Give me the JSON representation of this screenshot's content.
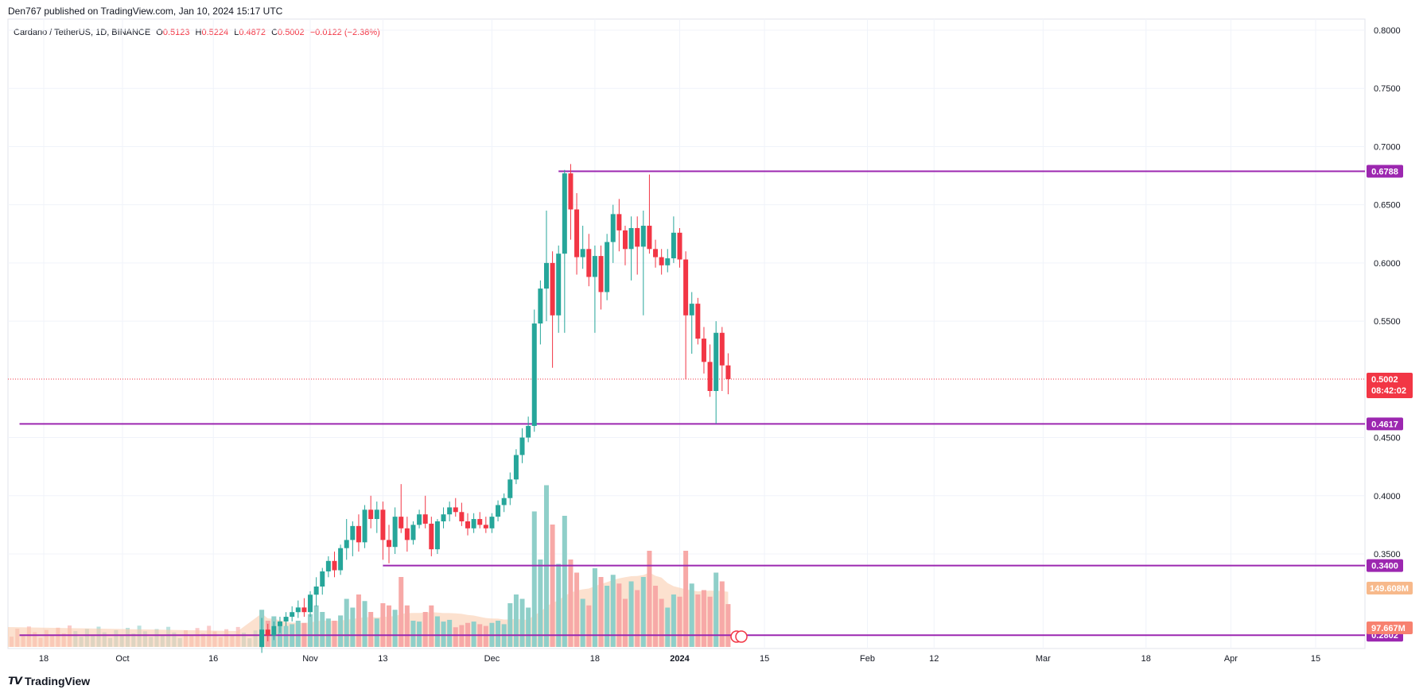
{
  "header": {
    "publish_text": "Den767 published on TradingView.com, Jan 10, 2024 15:17 UTC",
    "symbol": "Cardano / TetherUS, 1D, BINANCE",
    "o_label": "O",
    "o_value": "0.5123",
    "h_label": "H",
    "h_value": "0.5224",
    "l_label": "L",
    "l_value": "0.4872",
    "c_label": "C",
    "c_value": "0.5002",
    "change": "−0.0122 (−2.38%)"
  },
  "footer": {
    "logo_text": "TradingView",
    "logo_icon": "tradingview-logo-icon"
  },
  "colors": {
    "up": "#26a69a",
    "down": "#f23645",
    "level_line": "#9c27b0",
    "up_volume": "#8fcfc9",
    "down_volume": "#f7a9a7",
    "ma_fill": "#f9c8a8",
    "grid": "#f0f3fa",
    "price_badge": "#f23645",
    "vol_badge": "#f7931a"
  },
  "chart_data": {
    "type": "candlestick",
    "symbol": "Cardano / TetherUS",
    "interval": "1D",
    "exchange": "BINANCE",
    "y_axis": {
      "ticks": [
        "0.8000",
        "0.7500",
        "0.7000",
        "0.6500",
        "0.6000",
        "0.5500",
        "0.4500",
        "0.4000",
        "0.3500"
      ],
      "ylim": [
        0.258,
        0.812
      ]
    },
    "x_axis": {
      "ticks": [
        "18",
        "Oct",
        "16",
        "Nov",
        "13",
        "Dec",
        "18",
        "2024",
        "15",
        "Feb",
        "12",
        "Mar",
        "18",
        "Apr",
        "15"
      ],
      "tick_dates": [
        "2023-09-18",
        "2023-10-01",
        "2023-10-16",
        "2023-11-01",
        "2023-11-13",
        "2023-12-01",
        "2023-12-18",
        "2024-01-01",
        "2024-01-15",
        "2024-02-01",
        "2024-02-12",
        "2024-03-01",
        "2024-03-18",
        "2024-04-01",
        "2024-04-15"
      ]
    },
    "horizontal_levels": [
      {
        "value": 0.6788,
        "label": "0.6788",
        "start": "2023-12-12"
      },
      {
        "value": 0.4617,
        "label": "0.4617",
        "start": "2023-09-14"
      },
      {
        "value": 0.34,
        "label": "0.3400",
        "start": "2023-11-13"
      },
      {
        "value": 0.2802,
        "label": "0.2802",
        "start": "2023-09-14"
      }
    ],
    "current_price": {
      "value": 0.5002,
      "label": "0.5002",
      "countdown": "08:42:02"
    },
    "volume_labels": [
      "149.608M",
      "97.667M"
    ],
    "candles": [
      {
        "date": "2023-10-24",
        "o": 0.27,
        "h": 0.295,
        "l": 0.265,
        "c": 0.285
      },
      {
        "date": "2023-10-25",
        "o": 0.285,
        "h": 0.29,
        "l": 0.275,
        "c": 0.28
      },
      {
        "date": "2023-10-26",
        "o": 0.28,
        "h": 0.292,
        "l": 0.276,
        "c": 0.288
      },
      {
        "date": "2023-10-27",
        "o": 0.288,
        "h": 0.296,
        "l": 0.282,
        "c": 0.292
      },
      {
        "date": "2023-10-28",
        "o": 0.292,
        "h": 0.3,
        "l": 0.288,
        "c": 0.296
      },
      {
        "date": "2023-10-29",
        "o": 0.296,
        "h": 0.305,
        "l": 0.292,
        "c": 0.3
      },
      {
        "date": "2023-10-30",
        "o": 0.3,
        "h": 0.31,
        "l": 0.295,
        "c": 0.304
      },
      {
        "date": "2023-10-31",
        "o": 0.304,
        "h": 0.312,
        "l": 0.296,
        "c": 0.3
      },
      {
        "date": "2023-11-01",
        "o": 0.3,
        "h": 0.318,
        "l": 0.296,
        "c": 0.315
      },
      {
        "date": "2023-11-02",
        "o": 0.315,
        "h": 0.33,
        "l": 0.305,
        "c": 0.322
      },
      {
        "date": "2023-11-03",
        "o": 0.322,
        "h": 0.338,
        "l": 0.315,
        "c": 0.335
      },
      {
        "date": "2023-11-04",
        "o": 0.335,
        "h": 0.348,
        "l": 0.33,
        "c": 0.344
      },
      {
        "date": "2023-11-05",
        "o": 0.344,
        "h": 0.352,
        "l": 0.33,
        "c": 0.336
      },
      {
        "date": "2023-11-06",
        "o": 0.336,
        "h": 0.358,
        "l": 0.332,
        "c": 0.355
      },
      {
        "date": "2023-11-07",
        "o": 0.355,
        "h": 0.38,
        "l": 0.345,
        "c": 0.362
      },
      {
        "date": "2023-11-08",
        "o": 0.362,
        "h": 0.378,
        "l": 0.348,
        "c": 0.374
      },
      {
        "date": "2023-11-09",
        "o": 0.374,
        "h": 0.384,
        "l": 0.352,
        "c": 0.36
      },
      {
        "date": "2023-11-10",
        "o": 0.36,
        "h": 0.392,
        "l": 0.355,
        "c": 0.388
      },
      {
        "date": "2023-11-11",
        "o": 0.388,
        "h": 0.4,
        "l": 0.372,
        "c": 0.38
      },
      {
        "date": "2023-11-12",
        "o": 0.38,
        "h": 0.395,
        "l": 0.368,
        "c": 0.388
      },
      {
        "date": "2023-11-13",
        "o": 0.388,
        "h": 0.395,
        "l": 0.345,
        "c": 0.362
      },
      {
        "date": "2023-11-14",
        "o": 0.362,
        "h": 0.375,
        "l": 0.342,
        "c": 0.356
      },
      {
        "date": "2023-11-15",
        "o": 0.356,
        "h": 0.39,
        "l": 0.35,
        "c": 0.382
      },
      {
        "date": "2023-11-16",
        "o": 0.382,
        "h": 0.41,
        "l": 0.368,
        "c": 0.372
      },
      {
        "date": "2023-11-17",
        "o": 0.372,
        "h": 0.382,
        "l": 0.352,
        "c": 0.362
      },
      {
        "date": "2023-11-18",
        "o": 0.362,
        "h": 0.378,
        "l": 0.358,
        "c": 0.375
      },
      {
        "date": "2023-11-19",
        "o": 0.375,
        "h": 0.388,
        "l": 0.372,
        "c": 0.384
      },
      {
        "date": "2023-11-20",
        "o": 0.384,
        "h": 0.4,
        "l": 0.372,
        "c": 0.376
      },
      {
        "date": "2023-11-21",
        "o": 0.376,
        "h": 0.382,
        "l": 0.348,
        "c": 0.354
      },
      {
        "date": "2023-11-22",
        "o": 0.354,
        "h": 0.38,
        "l": 0.35,
        "c": 0.378
      },
      {
        "date": "2023-11-23",
        "o": 0.378,
        "h": 0.39,
        "l": 0.372,
        "c": 0.384
      },
      {
        "date": "2023-11-24",
        "o": 0.384,
        "h": 0.395,
        "l": 0.378,
        "c": 0.39
      },
      {
        "date": "2023-11-25",
        "o": 0.39,
        "h": 0.398,
        "l": 0.382,
        "c": 0.386
      },
      {
        "date": "2023-11-26",
        "o": 0.386,
        "h": 0.394,
        "l": 0.374,
        "c": 0.378
      },
      {
        "date": "2023-11-27",
        "o": 0.378,
        "h": 0.385,
        "l": 0.366,
        "c": 0.372
      },
      {
        "date": "2023-11-28",
        "o": 0.372,
        "h": 0.385,
        "l": 0.368,
        "c": 0.38
      },
      {
        "date": "2023-11-29",
        "o": 0.38,
        "h": 0.386,
        "l": 0.372,
        "c": 0.375
      },
      {
        "date": "2023-11-30",
        "o": 0.375,
        "h": 0.382,
        "l": 0.368,
        "c": 0.372
      },
      {
        "date": "2023-12-01",
        "o": 0.372,
        "h": 0.385,
        "l": 0.368,
        "c": 0.382
      },
      {
        "date": "2023-12-02",
        "o": 0.382,
        "h": 0.396,
        "l": 0.378,
        "c": 0.392
      },
      {
        "date": "2023-12-03",
        "o": 0.392,
        "h": 0.402,
        "l": 0.386,
        "c": 0.398
      },
      {
        "date": "2023-12-04",
        "o": 0.398,
        "h": 0.42,
        "l": 0.392,
        "c": 0.414
      },
      {
        "date": "2023-12-05",
        "o": 0.414,
        "h": 0.44,
        "l": 0.41,
        "c": 0.435
      },
      {
        "date": "2023-12-06",
        "o": 0.435,
        "h": 0.458,
        "l": 0.428,
        "c": 0.45
      },
      {
        "date": "2023-12-07",
        "o": 0.45,
        "h": 0.468,
        "l": 0.446,
        "c": 0.46
      },
      {
        "date": "2023-12-08",
        "o": 0.46,
        "h": 0.56,
        "l": 0.455,
        "c": 0.548
      },
      {
        "date": "2023-12-09",
        "o": 0.548,
        "h": 0.585,
        "l": 0.53,
        "c": 0.578
      },
      {
        "date": "2023-12-10",
        "o": 0.578,
        "h": 0.645,
        "l": 0.55,
        "c": 0.6
      },
      {
        "date": "2023-12-11",
        "o": 0.6,
        "h": 0.61,
        "l": 0.51,
        "c": 0.555
      },
      {
        "date": "2023-12-12",
        "o": 0.555,
        "h": 0.615,
        "l": 0.54,
        "c": 0.608
      },
      {
        "date": "2023-12-13",
        "o": 0.608,
        "h": 0.68,
        "l": 0.54,
        "c": 0.677
      },
      {
        "date": "2023-12-14",
        "o": 0.677,
        "h": 0.685,
        "l": 0.62,
        "c": 0.646
      },
      {
        "date": "2023-12-15",
        "o": 0.646,
        "h": 0.66,
        "l": 0.59,
        "c": 0.605
      },
      {
        "date": "2023-12-16",
        "o": 0.605,
        "h": 0.632,
        "l": 0.595,
        "c": 0.612
      },
      {
        "date": "2023-12-17",
        "o": 0.612,
        "h": 0.625,
        "l": 0.58,
        "c": 0.588
      },
      {
        "date": "2023-12-18",
        "o": 0.588,
        "h": 0.615,
        "l": 0.54,
        "c": 0.606
      },
      {
        "date": "2023-12-19",
        "o": 0.606,
        "h": 0.615,
        "l": 0.56,
        "c": 0.575
      },
      {
        "date": "2023-12-20",
        "o": 0.575,
        "h": 0.625,
        "l": 0.568,
        "c": 0.618
      },
      {
        "date": "2023-12-21",
        "o": 0.618,
        "h": 0.65,
        "l": 0.6,
        "c": 0.642
      },
      {
        "date": "2023-12-22",
        "o": 0.642,
        "h": 0.655,
        "l": 0.61,
        "c": 0.628
      },
      {
        "date": "2023-12-23",
        "o": 0.628,
        "h": 0.632,
        "l": 0.598,
        "c": 0.612
      },
      {
        "date": "2023-12-24",
        "o": 0.612,
        "h": 0.64,
        "l": 0.585,
        "c": 0.63
      },
      {
        "date": "2023-12-25",
        "o": 0.63,
        "h": 0.64,
        "l": 0.59,
        "c": 0.614
      },
      {
        "date": "2023-12-26",
        "o": 0.614,
        "h": 0.645,
        "l": 0.555,
        "c": 0.632
      },
      {
        "date": "2023-12-27",
        "o": 0.632,
        "h": 0.676,
        "l": 0.608,
        "c": 0.612
      },
      {
        "date": "2023-12-28",
        "o": 0.612,
        "h": 0.62,
        "l": 0.596,
        "c": 0.605
      },
      {
        "date": "2023-12-29",
        "o": 0.605,
        "h": 0.612,
        "l": 0.59,
        "c": 0.598
      },
      {
        "date": "2023-12-30",
        "o": 0.598,
        "h": 0.612,
        "l": 0.592,
        "c": 0.604
      },
      {
        "date": "2023-12-31",
        "o": 0.604,
        "h": 0.64,
        "l": 0.6,
        "c": 0.626
      },
      {
        "date": "2024-01-01",
        "o": 0.626,
        "h": 0.63,
        "l": 0.596,
        "c": 0.603
      },
      {
        "date": "2024-01-02",
        "o": 0.603,
        "h": 0.61,
        "l": 0.5,
        "c": 0.555
      },
      {
        "date": "2024-01-03",
        "o": 0.555,
        "h": 0.575,
        "l": 0.522,
        "c": 0.565
      },
      {
        "date": "2024-01-04",
        "o": 0.565,
        "h": 0.57,
        "l": 0.53,
        "c": 0.535
      },
      {
        "date": "2024-01-05",
        "o": 0.535,
        "h": 0.545,
        "l": 0.505,
        "c": 0.515
      },
      {
        "date": "2024-01-06",
        "o": 0.515,
        "h": 0.53,
        "l": 0.485,
        "c": 0.49
      },
      {
        "date": "2024-01-07",
        "o": 0.49,
        "h": 0.55,
        "l": 0.462,
        "c": 0.54
      },
      {
        "date": "2024-01-08",
        "o": 0.54,
        "h": 0.545,
        "l": 0.49,
        "c": 0.512
      },
      {
        "date": "2024-01-09",
        "o": 0.512,
        "h": 0.5224,
        "l": 0.4872,
        "c": 0.5002
      }
    ],
    "volume": [
      {
        "date": "2023-10-24",
        "v": 85,
        "up": true
      },
      {
        "date": "2023-10-25",
        "v": 60,
        "up": false
      },
      {
        "date": "2023-10-26",
        "v": 70,
        "up": true
      },
      {
        "date": "2023-10-27",
        "v": 55,
        "up": true
      },
      {
        "date": "2023-10-28",
        "v": 48,
        "up": true
      },
      {
        "date": "2023-10-29",
        "v": 52,
        "up": true
      },
      {
        "date": "2023-10-30",
        "v": 60,
        "up": true
      },
      {
        "date": "2023-10-31",
        "v": 55,
        "up": false
      },
      {
        "date": "2023-11-01",
        "v": 75,
        "up": true
      },
      {
        "date": "2023-11-02",
        "v": 95,
        "up": true
      },
      {
        "date": "2023-11-03",
        "v": 80,
        "up": true
      },
      {
        "date": "2023-11-04",
        "v": 65,
        "up": true
      },
      {
        "date": "2023-11-05",
        "v": 60,
        "up": false
      },
      {
        "date": "2023-11-06",
        "v": 72,
        "up": true
      },
      {
        "date": "2023-11-07",
        "v": 110,
        "up": true
      },
      {
        "date": "2023-11-08",
        "v": 90,
        "up": true
      },
      {
        "date": "2023-11-09",
        "v": 120,
        "up": false
      },
      {
        "date": "2023-11-10",
        "v": 105,
        "up": true
      },
      {
        "date": "2023-11-11",
        "v": 80,
        "up": false
      },
      {
        "date": "2023-11-12",
        "v": 65,
        "up": true
      },
      {
        "date": "2023-11-13",
        "v": 100,
        "up": false
      },
      {
        "date": "2023-11-14",
        "v": 95,
        "up": false
      },
      {
        "date": "2023-11-15",
        "v": 85,
        "up": true
      },
      {
        "date": "2023-11-16",
        "v": 160,
        "up": false
      },
      {
        "date": "2023-11-17",
        "v": 95,
        "up": false
      },
      {
        "date": "2023-11-18",
        "v": 60,
        "up": true
      },
      {
        "date": "2023-11-19",
        "v": 58,
        "up": true
      },
      {
        "date": "2023-11-20",
        "v": 80,
        "up": false
      },
      {
        "date": "2023-11-21",
        "v": 95,
        "up": false
      },
      {
        "date": "2023-11-22",
        "v": 70,
        "up": true
      },
      {
        "date": "2023-11-23",
        "v": 58,
        "up": true
      },
      {
        "date": "2023-11-24",
        "v": 62,
        "up": true
      },
      {
        "date": "2023-11-25",
        "v": 45,
        "up": false
      },
      {
        "date": "2023-11-26",
        "v": 50,
        "up": false
      },
      {
        "date": "2023-11-27",
        "v": 55,
        "up": false
      },
      {
        "date": "2023-11-28",
        "v": 58,
        "up": true
      },
      {
        "date": "2023-11-29",
        "v": 52,
        "up": false
      },
      {
        "date": "2023-11-30",
        "v": 48,
        "up": false
      },
      {
        "date": "2023-12-01",
        "v": 55,
        "up": true
      },
      {
        "date": "2023-12-02",
        "v": 60,
        "up": true
      },
      {
        "date": "2023-12-03",
        "v": 52,
        "up": true
      },
      {
        "date": "2023-12-04",
        "v": 100,
        "up": true
      },
      {
        "date": "2023-12-05",
        "v": 120,
        "up": true
      },
      {
        "date": "2023-12-06",
        "v": 110,
        "up": true
      },
      {
        "date": "2023-12-07",
        "v": 90,
        "up": true
      },
      {
        "date": "2023-12-08",
        "v": 310,
        "up": true
      },
      {
        "date": "2023-12-09",
        "v": 200,
        "up": true
      },
      {
        "date": "2023-12-10",
        "v": 370,
        "up": true
      },
      {
        "date": "2023-12-11",
        "v": 280,
        "up": false
      },
      {
        "date": "2023-12-12",
        "v": 190,
        "up": true
      },
      {
        "date": "2023-12-13",
        "v": 300,
        "up": true
      },
      {
        "date": "2023-12-14",
        "v": 200,
        "up": false
      },
      {
        "date": "2023-12-15",
        "v": 170,
        "up": false
      },
      {
        "date": "2023-12-16",
        "v": 110,
        "up": true
      },
      {
        "date": "2023-12-17",
        "v": 95,
        "up": false
      },
      {
        "date": "2023-12-18",
        "v": 180,
        "up": true
      },
      {
        "date": "2023-12-19",
        "v": 160,
        "up": false
      },
      {
        "date": "2023-12-20",
        "v": 140,
        "up": true
      },
      {
        "date": "2023-12-21",
        "v": 165,
        "up": true
      },
      {
        "date": "2023-12-22",
        "v": 145,
        "up": false
      },
      {
        "date": "2023-12-23",
        "v": 110,
        "up": false
      },
      {
        "date": "2023-12-24",
        "v": 150,
        "up": true
      },
      {
        "date": "2023-12-25",
        "v": 130,
        "up": false
      },
      {
        "date": "2023-12-26",
        "v": 160,
        "up": true
      },
      {
        "date": "2023-12-27",
        "v": 220,
        "up": false
      },
      {
        "date": "2023-12-28",
        "v": 140,
        "up": false
      },
      {
        "date": "2023-12-29",
        "v": 110,
        "up": false
      },
      {
        "date": "2023-12-30",
        "v": 90,
        "up": true
      },
      {
        "date": "2023-12-31",
        "v": 120,
        "up": true
      },
      {
        "date": "2024-01-01",
        "v": 115,
        "up": false
      },
      {
        "date": "2024-01-02",
        "v": 220,
        "up": false
      },
      {
        "date": "2024-01-03",
        "v": 145,
        "up": true
      },
      {
        "date": "2024-01-04",
        "v": 120,
        "up": false
      },
      {
        "date": "2024-01-05",
        "v": 130,
        "up": false
      },
      {
        "date": "2024-01-06",
        "v": 115,
        "up": false
      },
      {
        "date": "2024-01-07",
        "v": 170,
        "up": true
      },
      {
        "date": "2024-01-08",
        "v": 150,
        "up": false
      },
      {
        "date": "2024-01-09",
        "v": 98,
        "up": false
      }
    ]
  }
}
